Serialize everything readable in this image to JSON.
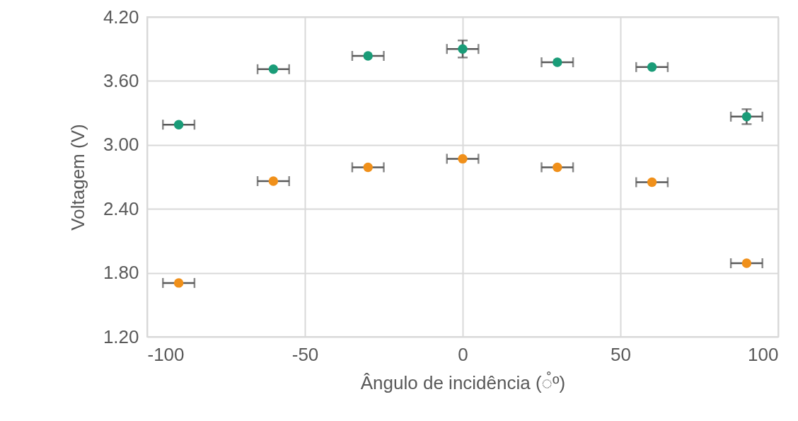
{
  "chart_data": {
    "type": "scatter",
    "xlabel": "Ângulo de incidência (◌̊º)",
    "ylabel": "Voltagem (V)",
    "x": [
      -90,
      -60,
      -30,
      0,
      30,
      60,
      90
    ],
    "series": [
      {
        "color": "#1a9c78",
        "values": [
          3.19,
          3.71,
          3.835,
          3.9,
          3.775,
          3.73,
          3.265
        ],
        "xerrors": [
          5,
          5,
          5,
          5,
          5,
          5,
          5
        ],
        "errors": [
          null,
          null,
          null,
          0.08,
          null,
          null,
          0.07
        ]
      },
      {
        "color": "#f0901a",
        "values": [
          1.705,
          2.66,
          2.79,
          2.87,
          2.79,
          2.65,
          1.89
        ],
        "xerrors": [
          5,
          5,
          5,
          5,
          5,
          5,
          5
        ]
      }
    ],
    "xlim": [
      -100,
      100
    ],
    "xticks": [
      -100,
      -50,
      0,
      50,
      100
    ],
    "ylim": [
      1.2,
      4.2
    ],
    "yticks": [
      {
        "value": 1.2,
        "label": "1.20"
      },
      {
        "value": 1.8,
        "label": "1.80"
      },
      {
        "value": 2.4,
        "label": "2.40"
      },
      {
        "value": 3,
        "label": "3.00"
      },
      {
        "value": 3.6,
        "label": "3.60"
      },
      {
        "value": 4.2,
        "label": "4.20"
      }
    ],
    "grid": true,
    "marker": "circle"
  }
}
